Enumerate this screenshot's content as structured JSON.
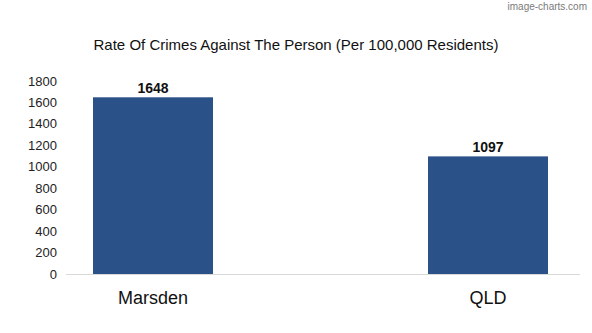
{
  "chart_data": {
    "type": "bar",
    "title": "Rate Of Crimes Against The Person (Per 100,000 Residents)",
    "annotations": [
      "image-charts.com"
    ],
    "categories": [
      "Marsden",
      "QLD"
    ],
    "values": [
      1648,
      1097
    ],
    "color": "#2b5189",
    "ylim": [
      0,
      1800
    ],
    "yticks": [
      0,
      200,
      400,
      600,
      800,
      1000,
      1200,
      1400,
      1600,
      1800
    ],
    "grid": false,
    "data_labels": true
  }
}
